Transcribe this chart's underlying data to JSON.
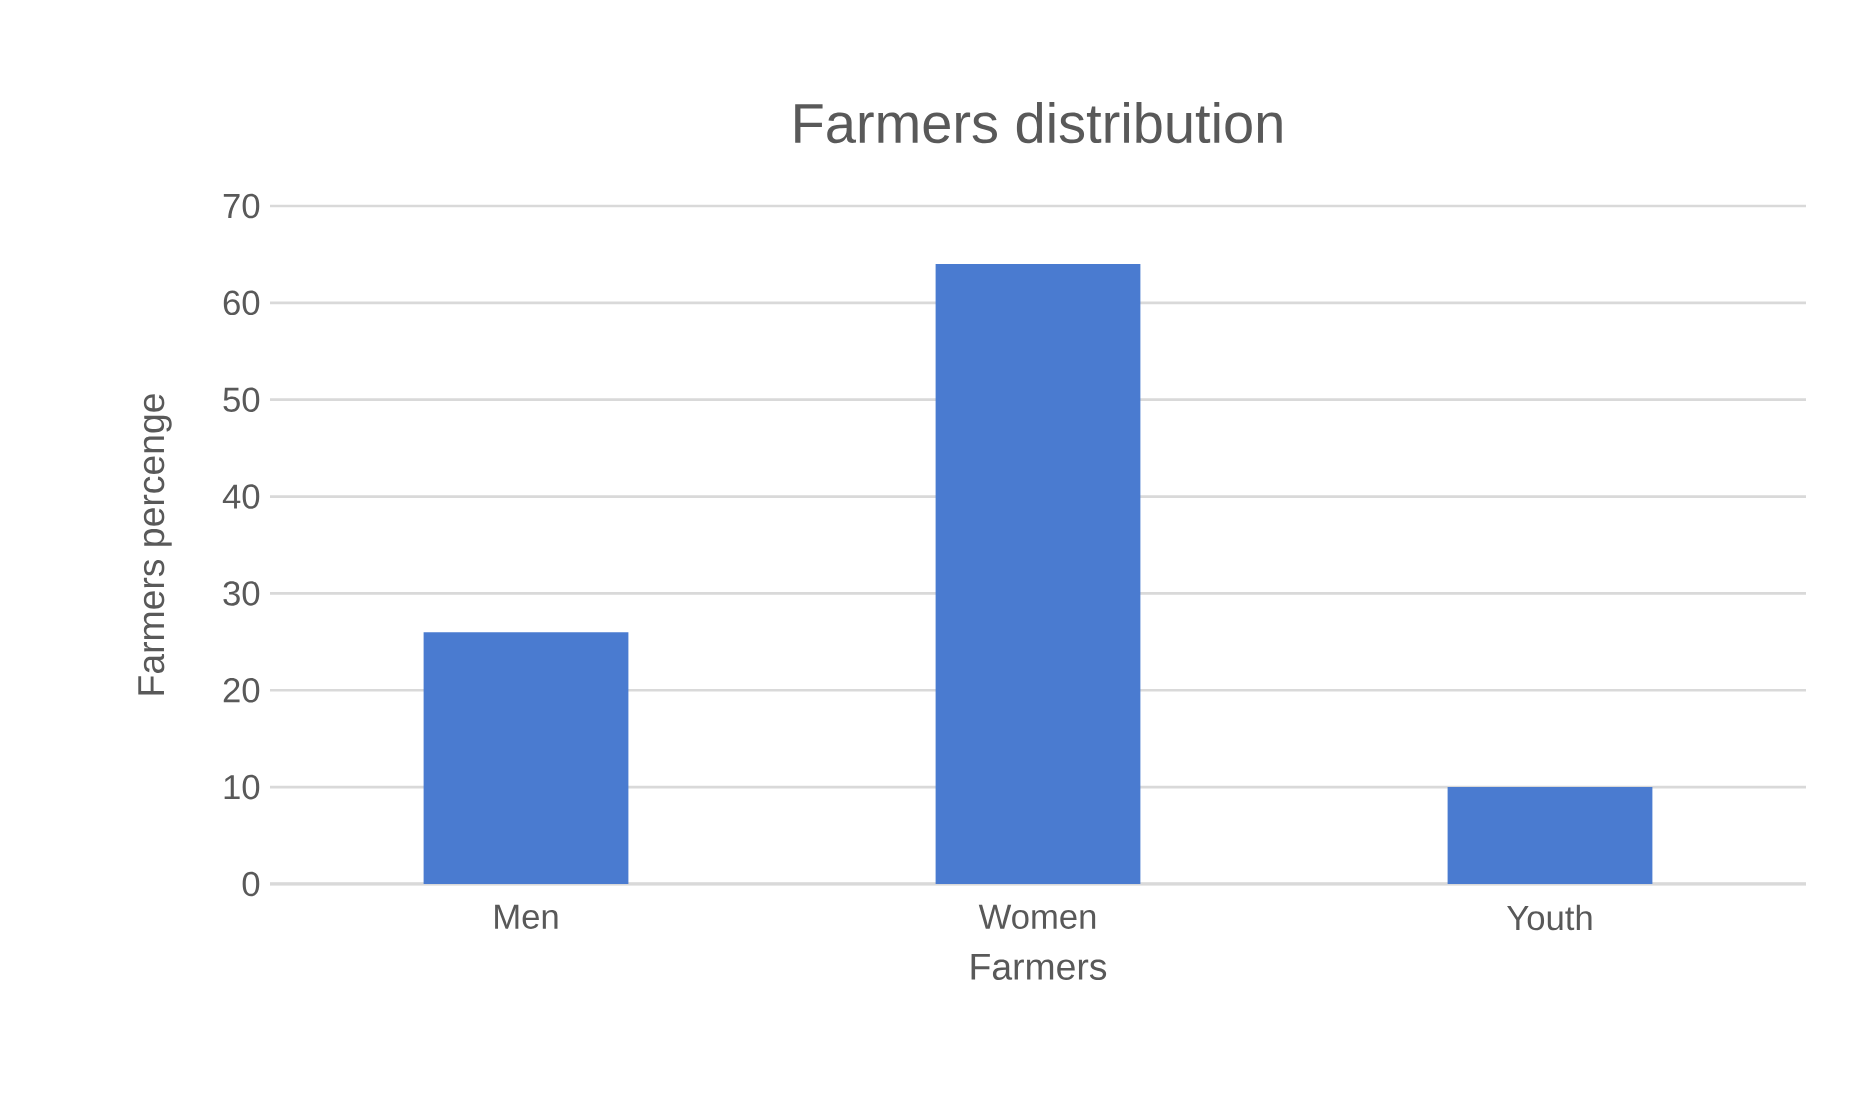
{
  "chart_data": {
    "type": "bar",
    "title": "Farmers distribution",
    "xlabel": "Farmers",
    "ylabel": "Farmers percenge",
    "categories": [
      "Men",
      "Women",
      "Youth"
    ],
    "values": [
      26,
      64,
      10
    ],
    "color": "#4a7bd0",
    "ylim": [
      0,
      70
    ],
    "yticks": [
      0,
      10,
      20,
      30,
      40,
      50,
      60,
      70
    ],
    "grid": "y"
  }
}
